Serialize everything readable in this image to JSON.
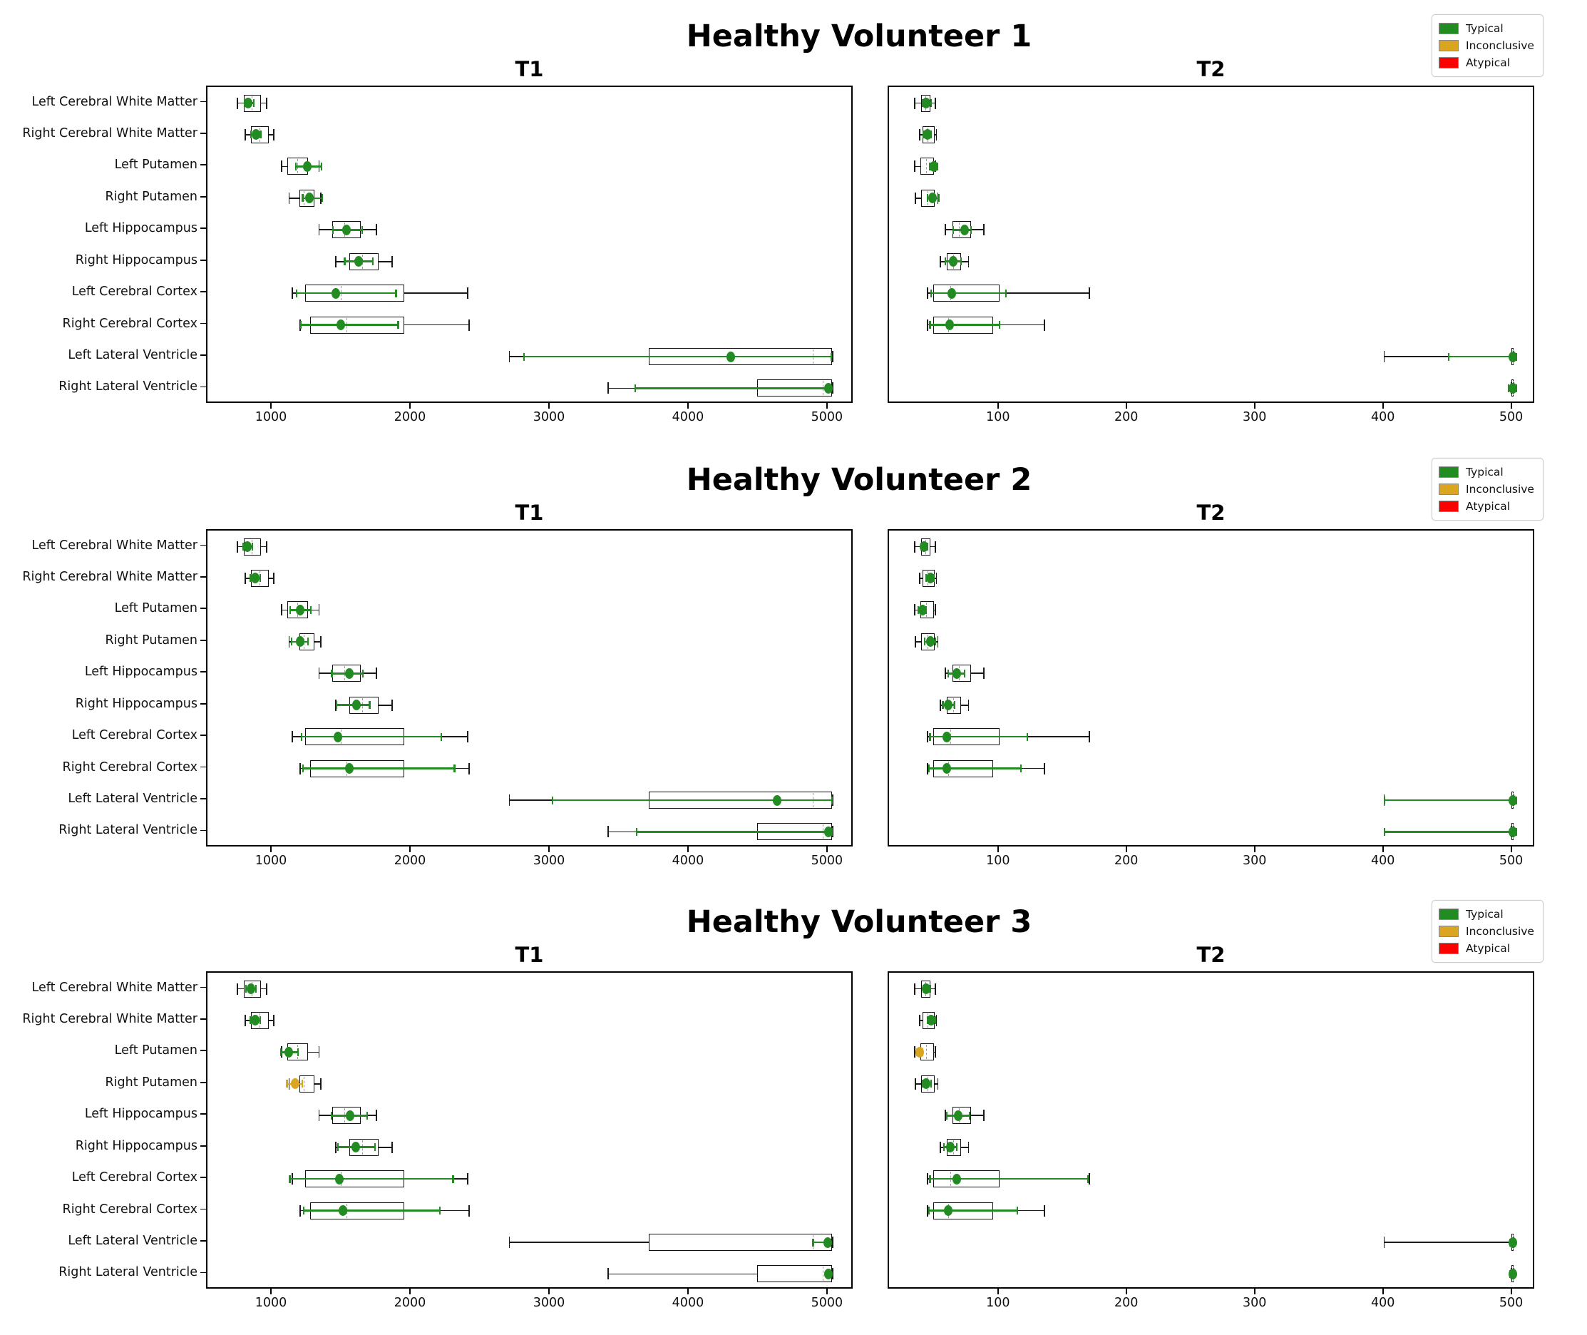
{
  "chart_data": {
    "type": "boxplot",
    "orientation": "horizontal",
    "grid": false,
    "categories": [
      "Left Cerebral White Matter",
      "Right Cerebral White Matter",
      "Left Putamen",
      "Right Putamen",
      "Left Hippocampus",
      "Right Hippocampus",
      "Left Cerebral Cortex",
      "Right Cerebral Cortex",
      "Left Lateral Ventricle",
      "Right Lateral Ventricle"
    ],
    "axes": {
      "T1": {
        "ticks": [
          1000,
          2000,
          3000,
          4000,
          5000
        ],
        "domain": [
          533,
          5185
        ]
      },
      "T2": {
        "ticks": [
          100,
          200,
          300,
          400,
          500
        ],
        "domain": [
          14,
          518
        ]
      }
    },
    "reference_boxes": {
      "T1": [
        [
          750,
          795,
          850,
          920,
          960
        ],
        [
          805,
          845,
          905,
          975,
          1010
        ],
        [
          1065,
          1110,
          1180,
          1255,
          1335
        ],
        [
          1120,
          1195,
          1225,
          1300,
          1350
        ],
        [
          1335,
          1430,
          1520,
          1635,
          1750
        ],
        [
          1455,
          1555,
          1645,
          1765,
          1860
        ],
        [
          1145,
          1235,
          1490,
          1950,
          2405
        ],
        [
          1200,
          1270,
          1535,
          1950,
          2415
        ],
        [
          2705,
          3710,
          4890,
          5025,
          5030
        ],
        [
          3415,
          4490,
          4960,
          5025,
          5030
        ]
      ],
      "T2": [
        [
          34,
          39,
          42.5,
          46,
          50
        ],
        [
          38,
          40,
          44,
          49.5,
          51
        ],
        [
          34,
          38.5,
          43,
          49,
          50
        ],
        [
          34.5,
          39,
          44,
          49.5,
          52
        ],
        [
          58,
          63.5,
          68.5,
          78,
          88
        ],
        [
          54,
          59,
          64,
          70,
          76
        ],
        [
          44,
          48.5,
          62,
          100,
          170
        ],
        [
          44,
          48.5,
          60,
          95,
          135
        ],
        [
          400,
          499,
          500,
          501,
          501
        ],
        [
          499,
          499,
          500,
          501,
          501
        ]
      ]
    },
    "volunteers": [
      {
        "suptitle": "Healthy Volunteer 1",
        "panels": [
          {
            "title": "T1",
            "modality": "T1",
            "points": [
              {
                "value": 825,
                "err_lo": 800,
                "err_hi": 868,
                "status": "typical"
              },
              {
                "value": 880,
                "err_lo": 845,
                "err_hi": 915,
                "status": "typical"
              },
              {
                "value": 1250,
                "err_lo": 1170,
                "err_hi": 1355,
                "status": "typical"
              },
              {
                "value": 1268,
                "err_lo": 1218,
                "err_hi": 1360,
                "status": "typical"
              },
              {
                "value": 1535,
                "err_lo": 1436,
                "err_hi": 1645,
                "status": "typical"
              },
              {
                "value": 1618,
                "err_lo": 1520,
                "err_hi": 1725,
                "status": "typical"
              },
              {
                "value": 1455,
                "err_lo": 1175,
                "err_hi": 1890,
                "status": "typical"
              },
              {
                "value": 1490,
                "err_lo": 1205,
                "err_hi": 1905,
                "status": "typical"
              },
              {
                "value": 4300,
                "err_lo": 2810,
                "err_hi": 5020,
                "status": "typical"
              },
              {
                "value": 5000,
                "err_lo": 3610,
                "err_hi": 5015,
                "status": "typical"
              }
            ]
          },
          {
            "title": "T2",
            "modality": "T2",
            "points": [
              {
                "value": 43,
                "err_lo": 40,
                "err_hi": 47,
                "status": "typical"
              },
              {
                "value": 44,
                "err_lo": 41,
                "err_hi": 47,
                "status": "typical"
              },
              {
                "value": 49,
                "err_lo": 46,
                "err_hi": 52,
                "status": "typical"
              },
              {
                "value": 48,
                "err_lo": 44,
                "err_hi": 53,
                "status": "typical"
              },
              {
                "value": 73,
                "err_lo": 64,
                "err_hi": 78,
                "status": "typical"
              },
              {
                "value": 64,
                "err_lo": 58,
                "err_hi": 70,
                "status": "typical"
              },
              {
                "value": 63,
                "err_lo": 47,
                "err_hi": 105,
                "status": "typical"
              },
              {
                "value": 61,
                "err_lo": 46,
                "err_hi": 100,
                "status": "typical"
              },
              {
                "value": 500,
                "err_lo": 450,
                "err_hi": 503,
                "status": "typical"
              },
              {
                "value": 500,
                "err_lo": 497,
                "err_hi": 503,
                "status": "typical"
              }
            ]
          }
        ]
      },
      {
        "suptitle": "Healthy Volunteer 2",
        "panels": [
          {
            "title": "T1",
            "modality": "T1",
            "points": [
              {
                "value": 822,
                "err_lo": 790,
                "err_hi": 858,
                "status": "typical"
              },
              {
                "value": 878,
                "err_lo": 843,
                "err_hi": 913,
                "status": "typical"
              },
              {
                "value": 1200,
                "err_lo": 1128,
                "err_hi": 1275,
                "status": "typical"
              },
              {
                "value": 1200,
                "err_lo": 1138,
                "err_hi": 1258,
                "status": "typical"
              },
              {
                "value": 1552,
                "err_lo": 1428,
                "err_hi": 1650,
                "status": "typical"
              },
              {
                "value": 1605,
                "err_lo": 1460,
                "err_hi": 1700,
                "status": "typical"
              },
              {
                "value": 1473,
                "err_lo": 1210,
                "err_hi": 2215,
                "status": "typical"
              },
              {
                "value": 1553,
                "err_lo": 1220,
                "err_hi": 2310,
                "status": "typical"
              },
              {
                "value": 4630,
                "err_lo": 3015,
                "err_hi": 5025,
                "status": "typical"
              },
              {
                "value": 5000,
                "err_lo": 3620,
                "err_hi": 5025,
                "status": "typical"
              }
            ]
          },
          {
            "title": "T2",
            "modality": "T2",
            "points": [
              {
                "value": 41,
                "err_lo": 39,
                "err_hi": 44,
                "status": "typical"
              },
              {
                "value": 46,
                "err_lo": 43,
                "err_hi": 49,
                "status": "typical"
              },
              {
                "value": 40,
                "err_lo": 37,
                "err_hi": 43,
                "status": "typical"
              },
              {
                "value": 46,
                "err_lo": 42,
                "err_hi": 50,
                "status": "typical"
              },
              {
                "value": 67,
                "err_lo": 60,
                "err_hi": 73,
                "status": "typical"
              },
              {
                "value": 60,
                "err_lo": 56,
                "err_hi": 65,
                "status": "typical"
              },
              {
                "value": 59,
                "err_lo": 46,
                "err_hi": 122,
                "status": "typical"
              },
              {
                "value": 59,
                "err_lo": 45,
                "err_hi": 117,
                "status": "typical"
              },
              {
                "value": 500,
                "err_lo": 400,
                "err_hi": 503,
                "status": "typical"
              },
              {
                "value": 500,
                "err_lo": 400,
                "err_hi": 503,
                "status": "typical"
              }
            ]
          }
        ]
      },
      {
        "suptitle": "Healthy Volunteer 3",
        "panels": [
          {
            "title": "T1",
            "modality": "T1",
            "points": [
              {
                "value": 845,
                "err_lo": 812,
                "err_hi": 882,
                "status": "typical"
              },
              {
                "value": 878,
                "err_lo": 843,
                "err_hi": 913,
                "status": "typical"
              },
              {
                "value": 1118,
                "err_lo": 1060,
                "err_hi": 1185,
                "status": "typical"
              },
              {
                "value": 1162,
                "err_lo": 1105,
                "err_hi": 1215,
                "status": "inconclusive"
              },
              {
                "value": 1560,
                "err_lo": 1425,
                "err_hi": 1680,
                "status": "typical"
              },
              {
                "value": 1600,
                "err_lo": 1470,
                "err_hi": 1740,
                "status": "typical"
              },
              {
                "value": 1480,
                "err_lo": 1125,
                "err_hi": 2300,
                "status": "typical"
              },
              {
                "value": 1510,
                "err_lo": 1225,
                "err_hi": 2205,
                "status": "typical"
              },
              {
                "value": 4995,
                "err_lo": 4890,
                "err_hi": 5015,
                "status": "typical"
              },
              {
                "value": 5000,
                "err_lo": 4985,
                "err_hi": 5012,
                "status": "typical"
              }
            ]
          },
          {
            "title": "T2",
            "modality": "T2",
            "points": [
              {
                "value": 43,
                "err_lo": 41,
                "err_hi": 46,
                "status": "typical"
              },
              {
                "value": 47,
                "err_lo": 44,
                "err_hi": 50,
                "status": "typical"
              },
              {
                "value": 38,
                "err_lo": 36,
                "err_hi": 40,
                "status": "inconclusive"
              },
              {
                "value": 43,
                "err_lo": 40,
                "err_hi": 47,
                "status": "typical"
              },
              {
                "value": 68,
                "err_lo": 59,
                "err_hi": 77,
                "status": "typical"
              },
              {
                "value": 62,
                "err_lo": 57,
                "err_hi": 67,
                "status": "typical"
              },
              {
                "value": 67,
                "err_lo": 46,
                "err_hi": 169,
                "status": "typical"
              },
              {
                "value": 60,
                "err_lo": 45,
                "err_hi": 114,
                "status": "typical"
              },
              {
                "value": 500,
                "err_lo": 498,
                "err_hi": 502,
                "status": "typical"
              },
              {
                "value": 500,
                "err_lo": 498,
                "err_hi": 502,
                "status": "typical"
              }
            ]
          }
        ]
      }
    ],
    "legend": [
      {
        "label": "Typical",
        "color": "#228B22"
      },
      {
        "label": "Inconclusive",
        "color": "#DAA520"
      },
      {
        "label": "Atypical",
        "color": "#FF0000"
      }
    ],
    "status_colors": {
      "typical": "#228B22",
      "inconclusive": "#DAA520",
      "atypical": "#FF0000"
    }
  }
}
